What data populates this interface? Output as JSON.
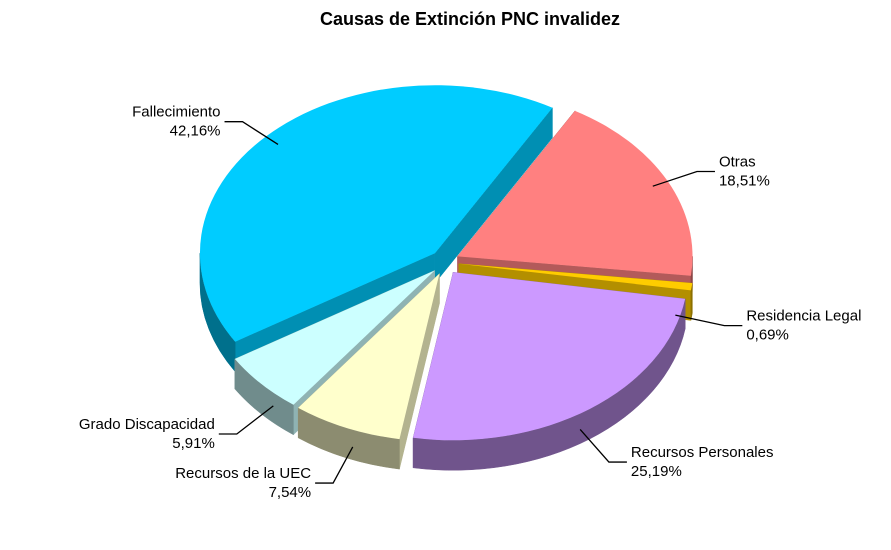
{
  "chart_data": {
    "type": "pie3d",
    "title": "Causas de Extinción PNC invalidez",
    "categories": [
      "Otras",
      "Residencia Legal",
      "Recursos Personales",
      "Recursos de la UEC",
      "Grado Discapacidad",
      "Fallecimiento"
    ],
    "values": [
      18.51,
      0.69,
      25.19,
      7.54,
      5.91,
      42.16
    ],
    "value_labels": [
      "18,51%",
      "0,69%",
      "25,19%",
      "7,54%",
      "5,91%",
      "42,16%"
    ],
    "colors": [
      "#ff8080",
      "#ffcc00",
      "#cc99ff",
      "#ffffcc",
      "#ccffff",
      "#00ccff"
    ]
  }
}
